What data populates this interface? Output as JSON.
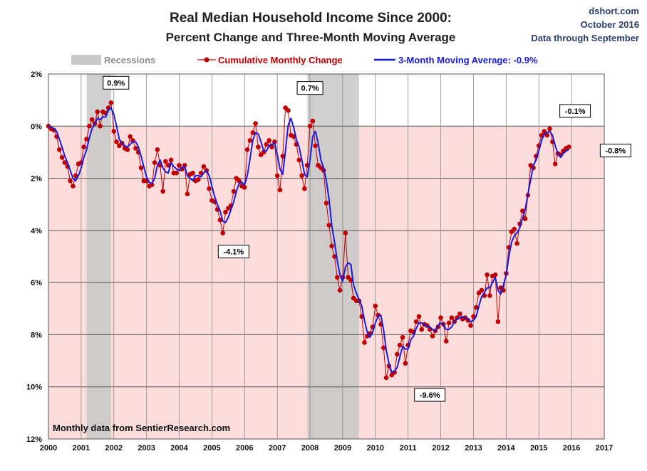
{
  "header": {
    "title": "Real Median Household Income Since 2000:",
    "subtitle": "Percent Change and Three-Month Moving Average",
    "source_line1": "dshort.com",
    "source_line2": "October 2016",
    "source_line3": "Data through September"
  },
  "footer": {
    "note": "Monthly data from SentierResearch.com"
  },
  "colors": {
    "plot_bg": "#fddcdc",
    "recession": "#c8c8c8",
    "monthly": "#c00000",
    "moving_avg": "#1a1adb",
    "grid": "#555555"
  },
  "chart_data": {
    "type": "line",
    "title": "Real Median Household Income Since 2000: Percent Change and Three-Month Moving Average",
    "xlim": [
      2000,
      2017
    ],
    "ylim": [
      -12,
      2
    ],
    "x_ticks": [
      "2000",
      "2001",
      "2002",
      "2003",
      "2004",
      "2005",
      "2006",
      "2007",
      "2008",
      "2009",
      "2010",
      "2011",
      "2012",
      "2013",
      "2014",
      "2015",
      "2016",
      "2017"
    ],
    "y_ticks": [
      {
        "value": 2,
        "label": "2%"
      },
      {
        "value": 0,
        "label": "0%"
      },
      {
        "value": -2,
        "label": "2%"
      },
      {
        "value": -4,
        "label": "4%"
      },
      {
        "value": -6,
        "label": "6%"
      },
      {
        "value": -8,
        "label": "8%"
      },
      {
        "value": -10,
        "label": "10%"
      },
      {
        "value": -12,
        "label": "12%"
      }
    ],
    "grid": true,
    "legend": {
      "placement": "top",
      "entries": [
        "Recessions",
        "Cumulative Monthly Change",
        "3-Month Moving Average: -0.9%"
      ]
    },
    "recessions": [
      [
        2001.17,
        2001.92
      ],
      [
        2007.92,
        2009.5
      ]
    ],
    "series": [
      {
        "name": "Cumulative Monthly Change",
        "x_start": 2000.0,
        "x_step_months": 1,
        "values": [
          0,
          -0.1,
          -0.15,
          -0.4,
          -0.9,
          -1.2,
          -1.4,
          -1.55,
          -2.1,
          -2.3,
          -1.9,
          -1.45,
          -1.4,
          -0.8,
          -0.5,
          0,
          0.25,
          0.1,
          0.55,
          0,
          0.55,
          0.5,
          0.7,
          0.9,
          -0.2,
          -0.6,
          -0.75,
          -0.65,
          -0.85,
          -0.9,
          -0.4,
          -0.55,
          -0.85,
          -1,
          -1.6,
          -2.1,
          -2.1,
          -2.3,
          -2.25,
          -1.4,
          -0.9,
          -1.5,
          -2.5,
          -1.35,
          -1.5,
          -1.3,
          -1.8,
          -1.8,
          -1.5,
          -1.65,
          -1.5,
          -2.6,
          -1.85,
          -1.8,
          -2.1,
          -2.05,
          -1.8,
          -1.55,
          -1.7,
          -2.4,
          -2.85,
          -2.9,
          -3.2,
          -3.6,
          -4.1,
          -3.3,
          -3.15,
          -3.05,
          -2.5,
          -2,
          -2.1,
          -2.3,
          -2.35,
          -0.9,
          -0.55,
          -0.25,
          0.1,
          -0.8,
          -1.1,
          -1,
          -0.7,
          -0.55,
          -0.8,
          -0.6,
          -1.9,
          -2.45,
          -1.15,
          0.7,
          0.6,
          -0.35,
          -0.4,
          -0.7,
          -1.3,
          -1.9,
          -2.4,
          -1.5,
          0,
          0.2,
          -0.75,
          -1.5,
          -1.6,
          -1.7,
          -2.95,
          -3.8,
          -4.6,
          -5,
          -5.8,
          -6.3,
          -5.8,
          -4.1,
          -5.8,
          -5.9,
          -6.6,
          -6.7,
          -6.7,
          -7.3,
          -8.3,
          -8.05,
          -7.95,
          -7.7,
          -6.9,
          -7.25,
          -7.6,
          -8.5,
          -9.65,
          -9.2,
          -9.55,
          -9.45,
          -8.75,
          -8.4,
          -8.1,
          -9.1,
          -8.4,
          -7.85,
          -7.9,
          -7.5,
          -7.3,
          -7.8,
          -7.6,
          -7.65,
          -7.8,
          -8.05,
          -7.85,
          -7.7,
          -7.35,
          -7.6,
          -8.25,
          -7.55,
          -7.35,
          -7.5,
          -7.35,
          -7.2,
          -7.4,
          -7.35,
          -7.45,
          -7.65,
          -7.3,
          -6.95,
          -6.4,
          -6.3,
          -6.5,
          -5.7,
          -6.5,
          -5.75,
          -5.7,
          -7.5,
          -6.2,
          -6.3,
          -5.65,
          -4.65,
          -4.05,
          -3.95,
          -4.5,
          -3.75,
          -3.25,
          -3.55,
          -2.65,
          -1.5,
          -1.6,
          -1.15,
          -0.75,
          -0.35,
          -0.2,
          -0.35,
          -0.1,
          -0.6,
          -1.45,
          -1.05,
          -1.1,
          -0.95,
          -0.85,
          -0.8
        ]
      },
      {
        "name": "3-Month Moving Average: -0.9%",
        "x_start": 2000.0,
        "x_step_months": 1,
        "values": [
          0,
          -0.05,
          -0.1,
          -0.2,
          -0.5,
          -0.8,
          -1.15,
          -1.4,
          -1.7,
          -2,
          -2.1,
          -1.9,
          -1.6,
          -1.2,
          -0.9,
          -0.45,
          -0.1,
          0.1,
          0.3,
          0.25,
          0.35,
          0.35,
          0.6,
          0.7,
          0.45,
          0,
          -0.5,
          -0.65,
          -0.75,
          -0.8,
          -0.7,
          -0.6,
          -0.6,
          -0.8,
          -1.15,
          -1.55,
          -1.95,
          -2.15,
          -2.2,
          -2,
          -1.5,
          -1.3,
          -1.6,
          -1.75,
          -1.8,
          -1.4,
          -1.55,
          -1.65,
          -1.7,
          -1.6,
          -1.55,
          -1.9,
          -2,
          -2.1,
          -1.9,
          -1.9,
          -1.95,
          -1.8,
          -1.7,
          -1.9,
          -2.3,
          -2.7,
          -3,
          -3.25,
          -3.65,
          -3.7,
          -3.5,
          -3.2,
          -2.9,
          -2.5,
          -2.2,
          -2.15,
          -2.25,
          -1.9,
          -1.25,
          -0.55,
          -0.25,
          -0.3,
          -0.6,
          -0.95,
          -0.95,
          -0.75,
          -0.7,
          -0.65,
          -1.1,
          -1.65,
          -1.85,
          -0.95,
          0.05,
          0.3,
          -0.05,
          -0.5,
          -0.8,
          -1.3,
          -1.85,
          -1.95,
          -1.3,
          -0.4,
          -0.2,
          -0.65,
          -1.3,
          -1.6,
          -2.1,
          -2.8,
          -3.8,
          -4.45,
          -5.15,
          -5.7,
          -5.95,
          -5.4,
          -5.25,
          -5.3,
          -6.1,
          -6.4,
          -6.65,
          -6.9,
          -7.45,
          -7.9,
          -8.1,
          -7.9,
          -7.55,
          -7.3,
          -7.25,
          -7.8,
          -8.6,
          -9.1,
          -9.45,
          -9.4,
          -9.25,
          -8.85,
          -8.45,
          -8.55,
          -8.55,
          -8.2,
          -8.05,
          -7.75,
          -7.55,
          -7.55,
          -7.6,
          -7.7,
          -7.7,
          -7.8,
          -7.85,
          -7.65,
          -7.55,
          -7.6,
          -7.8,
          -7.8,
          -7.7,
          -7.5,
          -7.4,
          -7.35,
          -7.3,
          -7.35,
          -7.4,
          -7.5,
          -7.45,
          -7.3,
          -6.9,
          -6.55,
          -6.4,
          -6.2,
          -6.2,
          -6,
          -5.8,
          -6.3,
          -6.45,
          -6.1,
          -5.7,
          -5,
          -4.45,
          -4.2,
          -4.1,
          -3.9,
          -3.55,
          -3.2,
          -2.6,
          -2.05,
          -1.5,
          -1.3,
          -0.95,
          -0.55,
          -0.3,
          -0.25,
          -0.2,
          -0.35,
          -0.75,
          -1.05,
          -1.2,
          -1.05,
          -0.95,
          -0.9
        ]
      }
    ],
    "annotations": [
      {
        "x": 2002.0,
        "y": 0.9,
        "label": "0.9%"
      },
      {
        "x": 2005.75,
        "y": -4.1,
        "label": "-4.1%"
      },
      {
        "x": 2008.0,
        "y": 0.7,
        "label": "0.7%"
      },
      {
        "x": 2011.25,
        "y": -9.6,
        "label": "-9.6%"
      },
      {
        "x": 2016.0,
        "y": -0.1,
        "label": "-0.1%"
      },
      {
        "x": 2016.67,
        "y": -0.8,
        "label": "-0.8%"
      }
    ]
  }
}
